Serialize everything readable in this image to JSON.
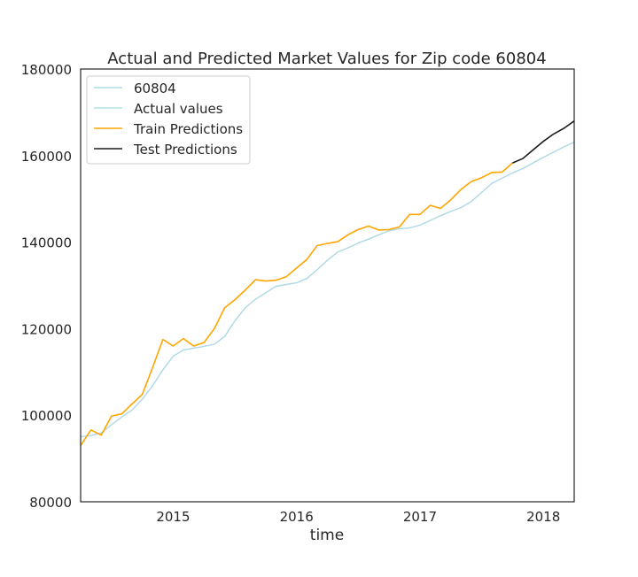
{
  "chart_data": {
    "type": "line",
    "title": "Actual and Predicted Market Values for Zip code 60804",
    "xlabel": "time",
    "ylabel": "",
    "xlim": [
      "2014-04-01",
      "2018-04-01"
    ],
    "ylim": [
      80000,
      180000
    ],
    "x_ticks": [
      "2015",
      "2016",
      "2017",
      "2018"
    ],
    "y_ticks": [
      "80000",
      "100000",
      "120000",
      "140000",
      "160000",
      "180000"
    ],
    "grid": false,
    "legend_position": "top-left",
    "series": [
      {
        "name": "60804",
        "color": "#add8e6",
        "x": [
          "2014-04",
          "2014-05",
          "2014-06",
          "2014-07",
          "2014-08",
          "2014-09",
          "2014-10",
          "2014-11",
          "2014-12",
          "2015-01",
          "2015-02",
          "2015-03",
          "2015-04",
          "2015-05",
          "2015-06",
          "2015-07",
          "2015-08",
          "2015-09",
          "2015-10",
          "2015-11",
          "2015-12",
          "2016-01",
          "2016-02",
          "2016-03",
          "2016-04",
          "2016-05",
          "2016-06",
          "2016-07",
          "2016-08",
          "2016-09",
          "2016-10",
          "2016-11",
          "2016-12",
          "2017-01",
          "2017-02",
          "2017-03",
          "2017-04",
          "2017-05",
          "2017-06",
          "2017-07",
          "2017-08",
          "2017-09",
          "2017-10",
          "2017-11",
          "2017-12",
          "2018-01",
          "2018-02",
          "2018-03",
          "2018-04"
        ],
        "values": [
          95000,
          95300,
          95900,
          97800,
          99600,
          101200,
          103700,
          106800,
          110500,
          113600,
          115100,
          115500,
          115900,
          116400,
          118200,
          121800,
          124800,
          126800,
          128300,
          129800,
          130200,
          130600,
          131600,
          133600,
          135800,
          137700,
          138700,
          139800,
          140700,
          141700,
          142600,
          143100,
          143300,
          143900,
          145000,
          146100,
          147100,
          148000,
          149400,
          151500,
          153600,
          154800,
          156000,
          157000,
          158300,
          159600,
          160800,
          162000,
          163100
        ]
      },
      {
        "name": "Actual values",
        "color": "#b0e0e6",
        "x": [],
        "values": []
      },
      {
        "name": "Train Predictions",
        "color": "#ffa500",
        "x": [
          "2014-04",
          "2014-05",
          "2014-06",
          "2014-07",
          "2014-08",
          "2014-09",
          "2014-10",
          "2014-11",
          "2014-12",
          "2015-01",
          "2015-02",
          "2015-03",
          "2015-04",
          "2015-05",
          "2015-06",
          "2015-07",
          "2015-08",
          "2015-09",
          "2015-10",
          "2015-11",
          "2015-12",
          "2016-01",
          "2016-02",
          "2016-03",
          "2016-04",
          "2016-05",
          "2016-06",
          "2016-07",
          "2016-08",
          "2016-09",
          "2016-10",
          "2016-11",
          "2016-12",
          "2017-01",
          "2017-02",
          "2017-03",
          "2017-04",
          "2017-05",
          "2017-06",
          "2017-07",
          "2017-08",
          "2017-09",
          "2017-10"
        ],
        "values": [
          93000,
          96600,
          95400,
          99800,
          100300,
          102600,
          104800,
          111000,
          117500,
          116000,
          117700,
          116000,
          116800,
          120000,
          124800,
          126700,
          128900,
          131300,
          131000,
          131200,
          132000,
          134000,
          136000,
          139200,
          139700,
          140100,
          141700,
          142900,
          143700,
          142800,
          142900,
          143500,
          146400,
          146400,
          148500,
          147800,
          149800,
          152200,
          154000,
          154900,
          156100,
          156200,
          158300
        ]
      },
      {
        "name": "Test Predictions",
        "color": "#1a1a1a",
        "x": [
          "2017-10",
          "2017-11",
          "2017-12",
          "2018-01",
          "2018-02",
          "2018-03",
          "2018-04"
        ],
        "values": [
          158300,
          159300,
          161300,
          163300,
          165000,
          166300,
          168000
        ]
      }
    ]
  }
}
